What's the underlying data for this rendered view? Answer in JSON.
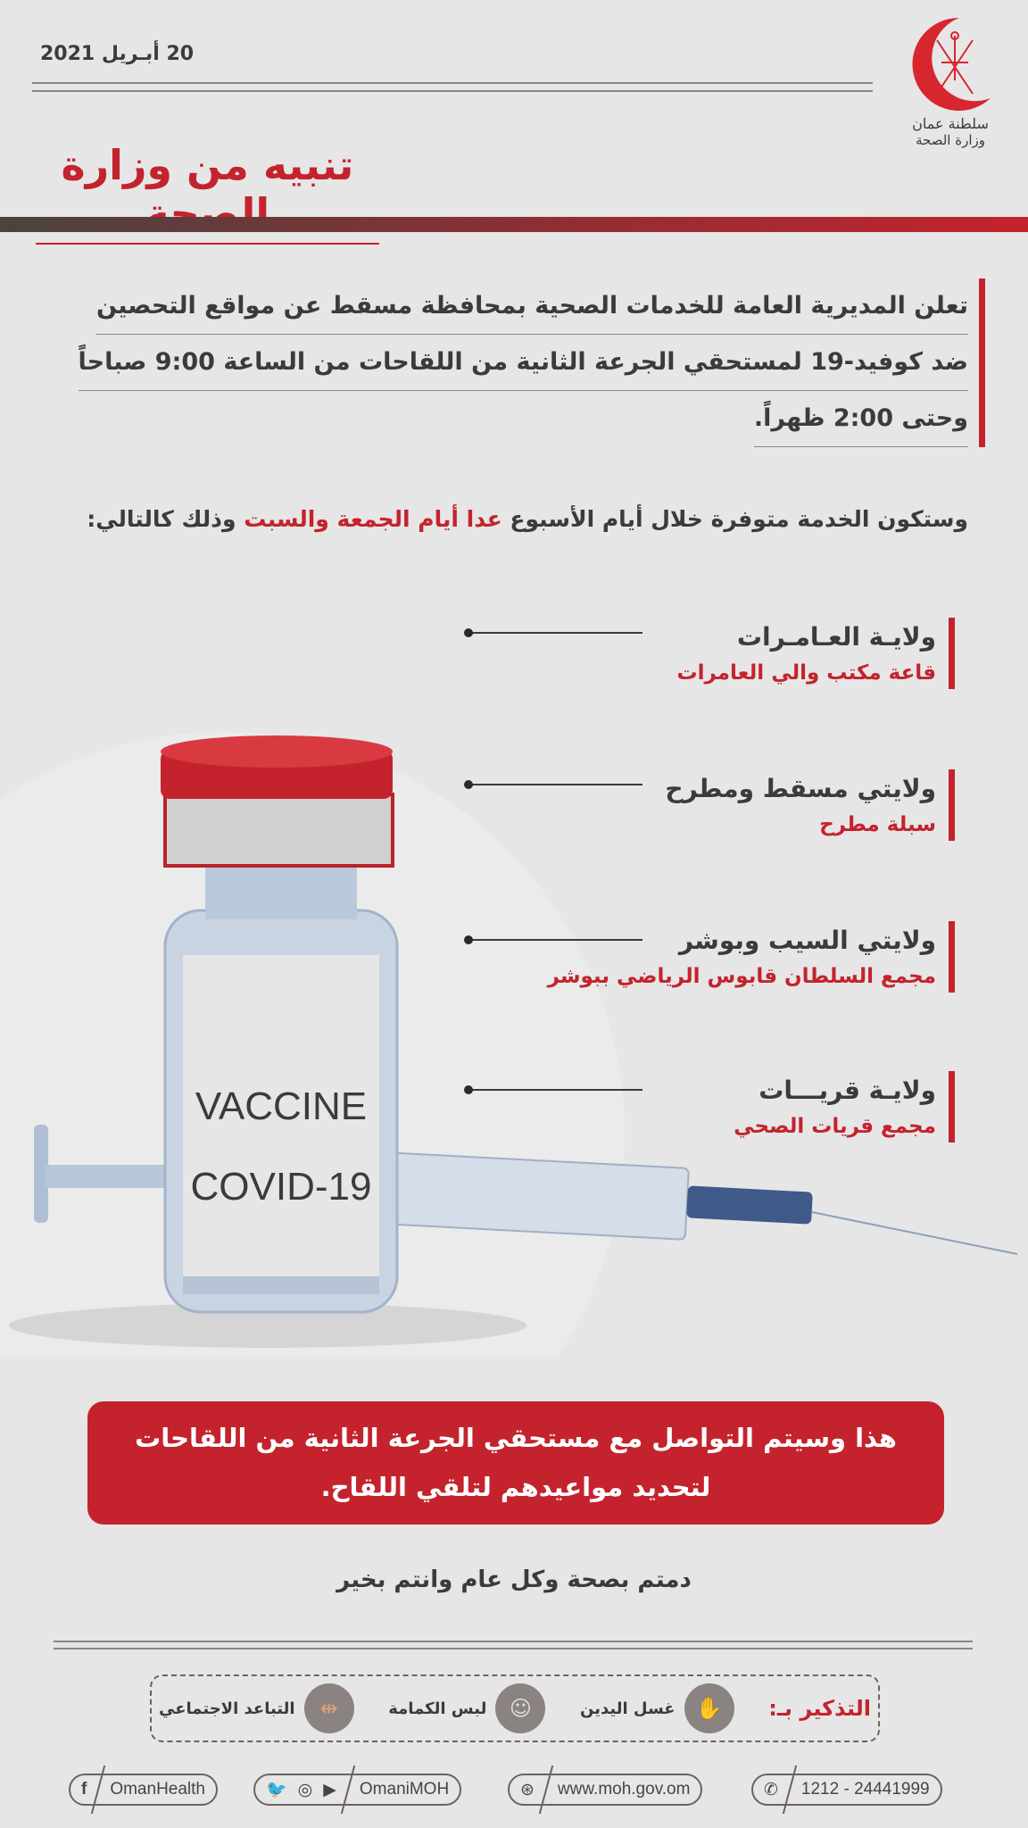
{
  "header": {
    "date": "20 أبـريل 2021",
    "logo_text_line1": "سلطنة عمان",
    "logo_text_line2": "وزارة الصحة",
    "title": "تنبيه من وزارة الصحة"
  },
  "intro": {
    "lines": [
      "تعلن المديرية العامة للخدمات الصحية بمحافظة مسقط عن مواقع التحصين",
      "ضد كوفيد-19 لمستحقي الجرعة الثانية من اللقاحات من الساعة 9:00 صباحاً",
      "وحتى 2:00 ظهراً."
    ]
  },
  "availability": {
    "before": "وستكون الخدمة متوفرة خلال أيام الأسبوع ",
    "highlight": "عدا أيام الجمعة والسبت",
    "after": " وذلك كالتالي:"
  },
  "locations": [
    {
      "wilayat": "ولايـة العـامـرات",
      "site": "قاعة مكتب والي العامرات"
    },
    {
      "wilayat": "ولايتي مسقط ومطرح",
      "site": "سبلة مطرح"
    },
    {
      "wilayat": "ولايتي السيب وبوشر",
      "site": "مجمع السلطان قابوس الرياضي ببوشر"
    },
    {
      "wilayat": "ولايـة قريـــات",
      "site": "مجمع قريات الصحي"
    }
  ],
  "vial": {
    "line1": "VACCINE",
    "line2": "COVID-19"
  },
  "notice": {
    "text": "هذا وسيتم التواصل مع مستحقي الجرعة الثانية من اللقاحات لتحديد مواعيدهم لتلقي اللقاح."
  },
  "closing": "دمتم بصحة وكل عام وانتم بخير",
  "reminder": {
    "label": "التذكير بـ:",
    "items": [
      {
        "label": "غسل اليدين",
        "icon": "hand-wash-icon"
      },
      {
        "label": "لبس الكمامة",
        "icon": "mask-icon"
      },
      {
        "label": "التباعد الاجتماعي",
        "icon": "distance-icon"
      }
    ]
  },
  "contacts": {
    "facebook": "OmanHealth",
    "social": "OmaniMOH",
    "website": "www.moh.gov.om",
    "phone": "1212 - 24441999"
  },
  "colors": {
    "accent": "#c4232d",
    "text": "#3d3a3a",
    "background": "#e6e6e6"
  }
}
